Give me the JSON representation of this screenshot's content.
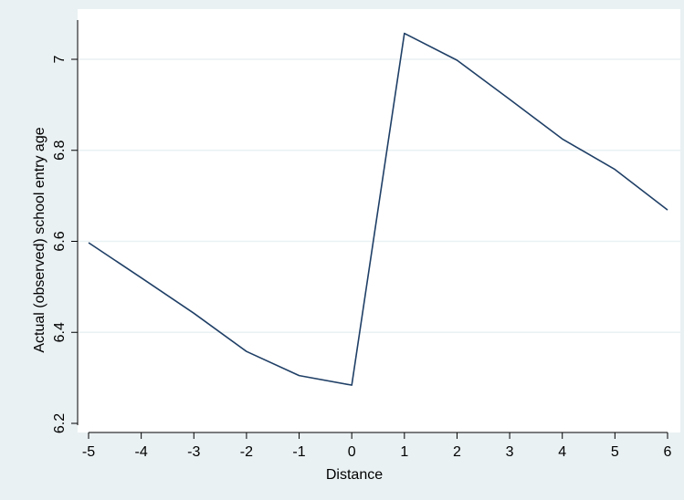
{
  "chart_data": {
    "type": "line",
    "title": "",
    "xlabel": "Distance",
    "ylabel": "Actual (observed) school entry age",
    "xlim": [
      -5,
      6
    ],
    "ylim": [
      6.2,
      7.0
    ],
    "x_ticks": [
      -5,
      -4,
      -3,
      -2,
      -1,
      0,
      1,
      2,
      3,
      4,
      5,
      6
    ],
    "y_ticks": [
      6.2,
      6.4,
      6.6,
      6.8,
      7
    ],
    "y_tick_labels": [
      "6.2",
      "6.4",
      "6.6",
      "6.8",
      "7"
    ],
    "grid": "horizontal",
    "line_color": "#1f3f66",
    "series": [
      {
        "x": [
          -5,
          -4,
          -3,
          -2,
          -1,
          0,
          1,
          2,
          3,
          4,
          5,
          6
        ],
        "values": [
          6.597,
          6.52,
          6.442,
          6.358,
          6.305,
          6.284,
          7.057,
          6.998,
          6.912,
          6.825,
          6.758,
          6.669
        ]
      }
    ]
  }
}
